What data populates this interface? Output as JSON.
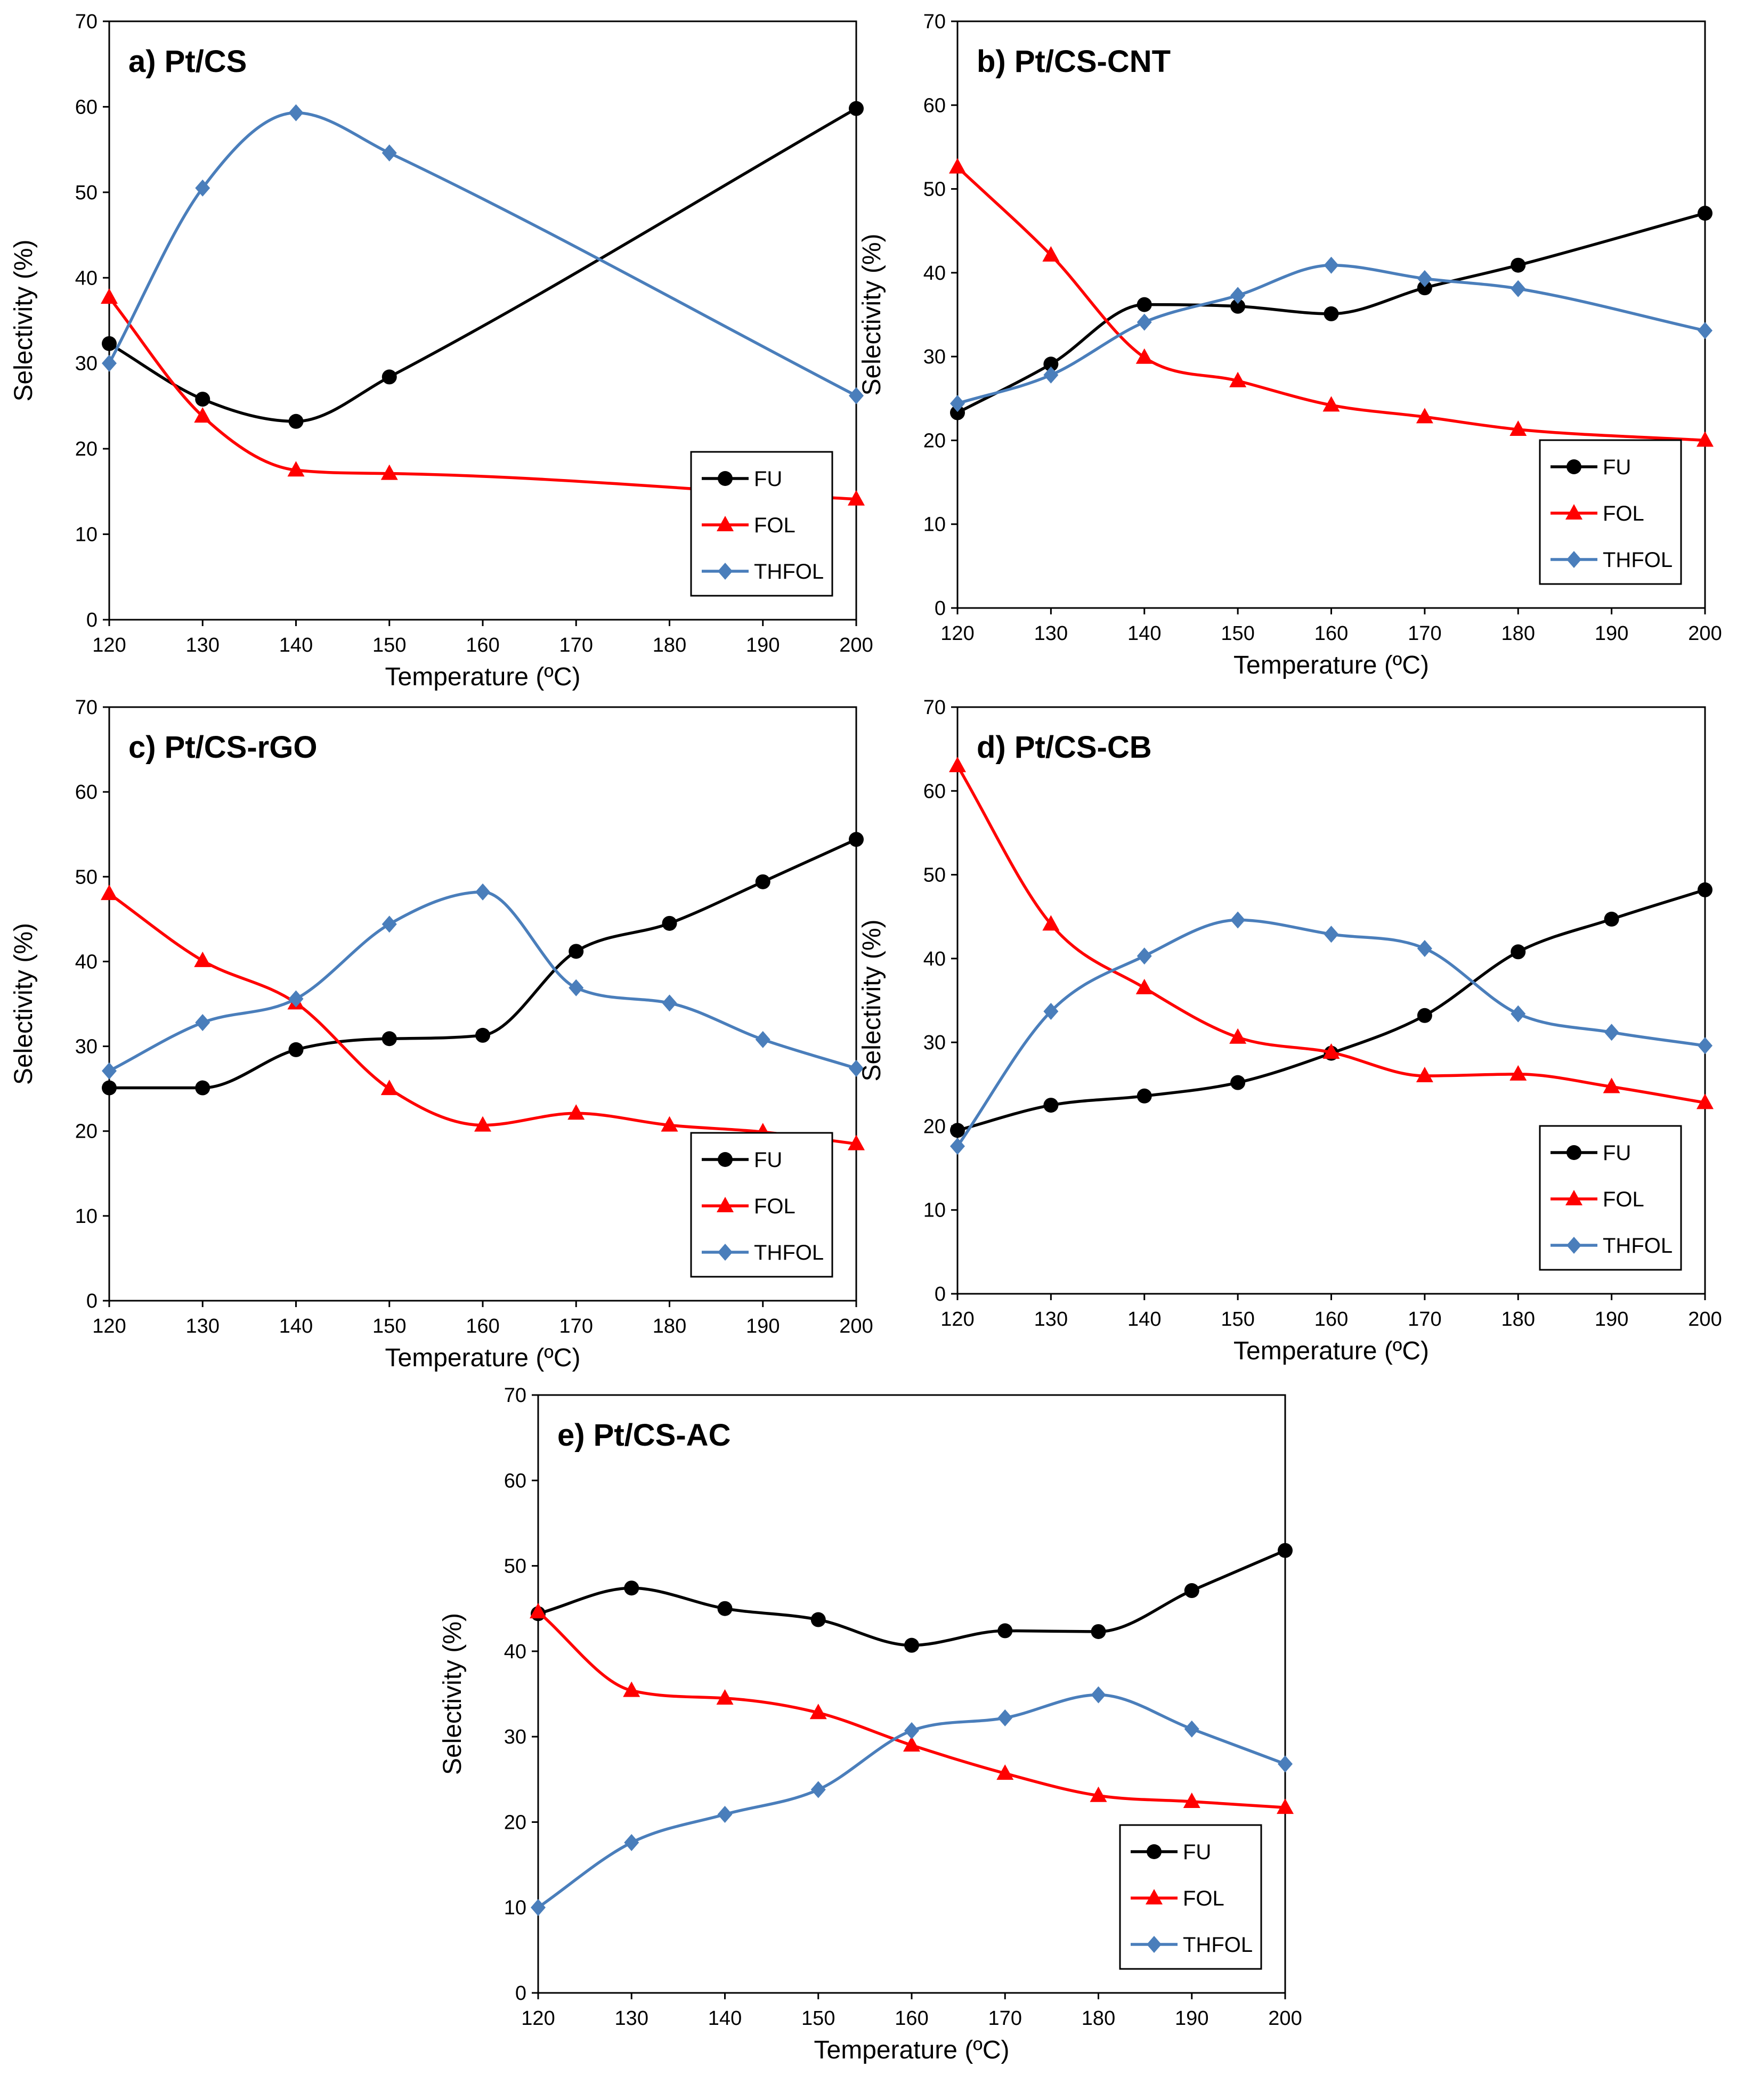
{
  "chart_data": [
    {
      "type": "line",
      "title": "a) Pt/CS",
      "xlabel": "Temperature (ºC)",
      "ylabel": "Selectivity (%)",
      "xlim": [
        120,
        200
      ],
      "ylim": [
        0,
        70
      ],
      "xticks": [
        120,
        130,
        140,
        150,
        160,
        170,
        180,
        190,
        200
      ],
      "yticks": [
        0,
        10,
        20,
        30,
        40,
        50,
        60,
        70
      ],
      "legend_position": "bottom-right",
      "series": [
        {
          "name": "FU",
          "color": "#000000",
          "marker": "circle",
          "x": [
            120,
            130,
            140,
            150,
            200
          ],
          "values": [
            32.3,
            25.8,
            23.2,
            28.4,
            59.8
          ]
        },
        {
          "name": "FOL",
          "color": "#ff0000",
          "marker": "triangle",
          "x": [
            120,
            130,
            140,
            150,
            200
          ],
          "values": [
            37.7,
            23.8,
            17.5,
            17.1,
            14.1
          ]
        },
        {
          "name": "THFOL",
          "color": "#4a7ebb",
          "marker": "diamond",
          "x": [
            120,
            130,
            140,
            150,
            200
          ],
          "values": [
            30.0,
            50.5,
            59.3,
            54.6,
            26.2
          ]
        }
      ]
    },
    {
      "type": "line",
      "title": "b) Pt/CS-CNT",
      "xlabel": "Temperature (ºC)",
      "ylabel": "Selectivity (%)",
      "xlim": [
        120,
        200
      ],
      "ylim": [
        0,
        70
      ],
      "xticks": [
        120,
        130,
        140,
        150,
        160,
        170,
        180,
        190,
        200
      ],
      "yticks": [
        0,
        10,
        20,
        30,
        40,
        50,
        60,
        70
      ],
      "legend_position": "bottom-right",
      "series": [
        {
          "name": "FU",
          "color": "#000000",
          "marker": "circle",
          "x": [
            120,
            130,
            140,
            150,
            160,
            170,
            180,
            200
          ],
          "values": [
            23.3,
            29.1,
            36.2,
            36.0,
            35.1,
            38.2,
            40.9,
            47.1
          ]
        },
        {
          "name": "FOL",
          "color": "#ff0000",
          "marker": "triangle",
          "x": [
            120,
            130,
            140,
            150,
            160,
            170,
            180,
            200
          ],
          "values": [
            52.6,
            42.1,
            29.9,
            27.1,
            24.2,
            22.8,
            21.3,
            20.0
          ]
        },
        {
          "name": "THFOL",
          "color": "#4a7ebb",
          "marker": "diamond",
          "x": [
            120,
            130,
            140,
            150,
            160,
            170,
            180,
            200
          ],
          "values": [
            24.4,
            27.8,
            34.1,
            37.3,
            40.9,
            39.3,
            38.1,
            33.1
          ]
        }
      ]
    },
    {
      "type": "line",
      "title": "c) Pt/CS-rGO",
      "xlabel": "Temperature (ºC)",
      "ylabel": "Selectivity (%)",
      "xlim": [
        120,
        200
      ],
      "ylim": [
        0,
        70
      ],
      "xticks": [
        120,
        130,
        140,
        150,
        160,
        170,
        180,
        190,
        200
      ],
      "yticks": [
        0,
        10,
        20,
        30,
        40,
        50,
        60,
        70
      ],
      "legend_position": "bottom-right",
      "series": [
        {
          "name": "FU",
          "color": "#000000",
          "marker": "circle",
          "x": [
            120,
            130,
            140,
            150,
            160,
            170,
            180,
            190,
            200
          ],
          "values": [
            25.1,
            25.1,
            29.6,
            30.9,
            31.3,
            41.2,
            44.5,
            49.4,
            54.4
          ]
        },
        {
          "name": "FOL",
          "color": "#ff0000",
          "marker": "triangle",
          "x": [
            120,
            130,
            140,
            150,
            160,
            170,
            180,
            190,
            200
          ],
          "values": [
            48.0,
            40.1,
            35.1,
            25.0,
            20.7,
            22.1,
            20.7,
            19.9,
            18.5
          ]
        },
        {
          "name": "THFOL",
          "color": "#4a7ebb",
          "marker": "diamond",
          "x": [
            120,
            130,
            140,
            150,
            160,
            170,
            180,
            190,
            200
          ],
          "values": [
            27.1,
            32.8,
            35.6,
            44.4,
            48.2,
            36.9,
            35.1,
            30.8,
            27.4
          ]
        }
      ]
    },
    {
      "type": "line",
      "title": "d) Pt/CS-CB",
      "xlabel": "Temperature (ºC)",
      "ylabel": "Selectivity (%)",
      "xlim": [
        120,
        200
      ],
      "ylim": [
        0,
        70
      ],
      "xticks": [
        120,
        130,
        140,
        150,
        160,
        170,
        180,
        190,
        200
      ],
      "yticks": [
        0,
        10,
        20,
        30,
        40,
        50,
        60,
        70
      ],
      "legend_position": "bottom-right",
      "series": [
        {
          "name": "FU",
          "color": "#000000",
          "marker": "circle",
          "x": [
            120,
            130,
            140,
            150,
            160,
            170,
            180,
            190,
            200
          ],
          "values": [
            19.5,
            22.5,
            23.6,
            25.2,
            28.7,
            33.2,
            40.8,
            44.7,
            48.2
          ]
        },
        {
          "name": "FOL",
          "color": "#ff0000",
          "marker": "triangle",
          "x": [
            120,
            130,
            140,
            150,
            160,
            170,
            180,
            190,
            200
          ],
          "values": [
            63.0,
            44.1,
            36.5,
            30.6,
            28.8,
            26.0,
            26.2,
            24.7,
            22.8
          ]
        },
        {
          "name": "THFOL",
          "color": "#4a7ebb",
          "marker": "diamond",
          "x": [
            120,
            130,
            140,
            150,
            160,
            170,
            180,
            190,
            200
          ],
          "values": [
            17.6,
            33.7,
            40.3,
            44.6,
            42.9,
            41.2,
            33.4,
            31.2,
            29.6
          ]
        }
      ]
    },
    {
      "type": "line",
      "title": "e) Pt/CS-AC",
      "xlabel": "Temperature (ºC)",
      "ylabel": "Selectivity (%)",
      "xlim": [
        120,
        200
      ],
      "ylim": [
        0,
        70
      ],
      "xticks": [
        120,
        130,
        140,
        150,
        160,
        170,
        180,
        190,
        200
      ],
      "yticks": [
        0,
        10,
        20,
        30,
        40,
        50,
        60,
        70
      ],
      "legend_position": "bottom-right",
      "series": [
        {
          "name": "FU",
          "color": "#000000",
          "marker": "circle",
          "x": [
            120,
            130,
            140,
            150,
            160,
            170,
            180,
            190,
            200
          ],
          "values": [
            44.4,
            47.4,
            45.0,
            43.7,
            40.7,
            42.4,
            42.3,
            47.1,
            51.8
          ]
        },
        {
          "name": "FOL",
          "color": "#ff0000",
          "marker": "triangle",
          "x": [
            120,
            130,
            140,
            150,
            160,
            170,
            180,
            190,
            200
          ],
          "values": [
            44.6,
            35.4,
            34.5,
            32.8,
            29.0,
            25.7,
            23.1,
            22.4,
            21.7
          ]
        },
        {
          "name": "THFOL",
          "color": "#4a7ebb",
          "marker": "diamond",
          "x": [
            120,
            130,
            140,
            150,
            160,
            170,
            180,
            190,
            200
          ],
          "values": [
            10.0,
            17.6,
            20.9,
            23.8,
            30.7,
            32.2,
            34.9,
            30.9,
            26.8
          ]
        }
      ]
    }
  ]
}
